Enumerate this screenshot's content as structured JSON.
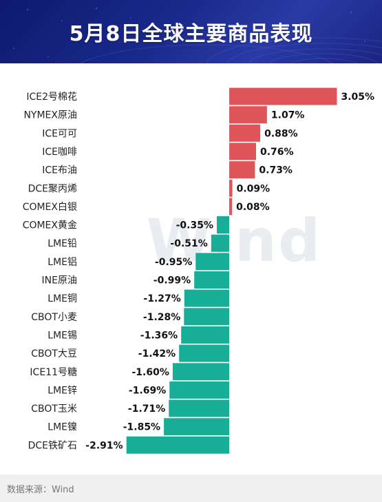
{
  "header": {
    "title": "5月8日全球主要商品表现"
  },
  "watermark": "Wind",
  "footer": {
    "source": "数据来源：Wind"
  },
  "colors": {
    "positive": "#e0555a",
    "negative": "#17ad97",
    "header_bg": "#14207a"
  },
  "chart_data": {
    "type": "bar",
    "orientation": "horizontal",
    "categories": [
      "ICE2号棉花",
      "NYMEX原油",
      "ICE可可",
      "ICE咖啡",
      "ICE布油",
      "DCE聚丙烯",
      "COMEX白银",
      "COMEX黄金",
      "LME铅",
      "LME铝",
      "INE原油",
      "LME铜",
      "CBOT小麦",
      "LME锡",
      "CBOT大豆",
      "ICE11号糖",
      "LME锌",
      "CBOT玉米",
      "LME镍",
      "DCE铁矿石"
    ],
    "values": [
      3.05,
      1.07,
      0.88,
      0.76,
      0.73,
      0.09,
      0.08,
      -0.35,
      -0.51,
      -0.95,
      -0.99,
      -1.27,
      -1.28,
      -1.36,
      -1.42,
      -1.6,
      -1.69,
      -1.71,
      -1.85,
      -2.91
    ],
    "labels": [
      "3.05%",
      "1.07%",
      "0.88%",
      "0.76%",
      "0.73%",
      "0.09%",
      "0.08%",
      "-0.35%",
      "-0.51%",
      "-0.95%",
      "-0.99%",
      "-1.27%",
      "-1.28%",
      "-1.36%",
      "-1.42%",
      "-1.60%",
      "-1.69%",
      "-1.71%",
      "-1.85%",
      "-2.91%"
    ],
    "unit": "%",
    "grid": false,
    "legend": "none"
  }
}
